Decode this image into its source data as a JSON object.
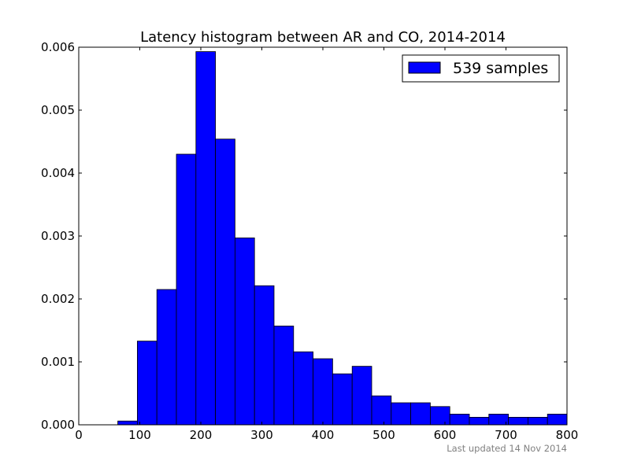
{
  "chart_data": {
    "type": "bar",
    "title": "Latency histogram between AR and CO, 2014-2014",
    "xlabel": "",
    "ylabel": "",
    "xlim": [
      0,
      800
    ],
    "ylim": [
      0,
      0.006
    ],
    "x_ticks": [
      "0",
      "100",
      "200",
      "300",
      "400",
      "500",
      "600",
      "700",
      "800"
    ],
    "y_ticks": [
      "0.000",
      "0.001",
      "0.002",
      "0.003",
      "0.004",
      "0.005",
      "0.006"
    ],
    "bin_width": 32,
    "series": [
      {
        "name": "539 samples",
        "color": "#0000ff",
        "bins": [
          {
            "x0": 64,
            "value": 6e-05
          },
          {
            "x0": 96,
            "value": 0.00133
          },
          {
            "x0": 128,
            "value": 0.00215
          },
          {
            "x0": 160,
            "value": 0.0043
          },
          {
            "x0": 192,
            "value": 0.00593
          },
          {
            "x0": 224,
            "value": 0.00454
          },
          {
            "x0": 256,
            "value": 0.00297
          },
          {
            "x0": 288,
            "value": 0.00221
          },
          {
            "x0": 320,
            "value": 0.00157
          },
          {
            "x0": 352,
            "value": 0.00116
          },
          {
            "x0": 384,
            "value": 0.00105
          },
          {
            "x0": 416,
            "value": 0.00081
          },
          {
            "x0": 448,
            "value": 0.00093
          },
          {
            "x0": 480,
            "value": 0.00046
          },
          {
            "x0": 512,
            "value": 0.00035
          },
          {
            "x0": 544,
            "value": 0.00035
          },
          {
            "x0": 576,
            "value": 0.00029
          },
          {
            "x0": 608,
            "value": 0.00017
          },
          {
            "x0": 640,
            "value": 0.00012
          },
          {
            "x0": 672,
            "value": 0.00017
          },
          {
            "x0": 704,
            "value": 0.00012
          },
          {
            "x0": 736,
            "value": 0.00012
          },
          {
            "x0": 768,
            "value": 0.00017
          }
        ]
      }
    ],
    "legend": {
      "position": "top-right",
      "label": "539 samples"
    },
    "grid": false
  },
  "footnote": "Last updated 14 Nov 2014"
}
